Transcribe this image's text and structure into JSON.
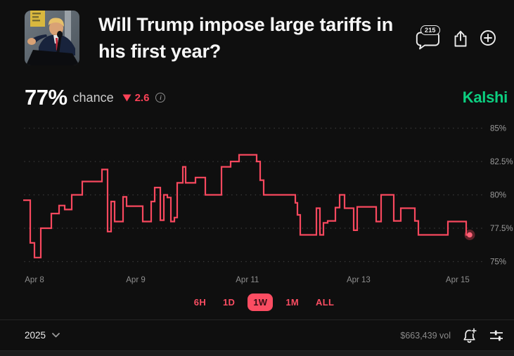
{
  "header": {
    "title": "Will Trump impose large tariffs in his first year?",
    "comments_count": "215"
  },
  "market": {
    "chance_value": "77%",
    "chance_label": "chance",
    "change_value": "2.6",
    "change_direction": "down",
    "brand": "Kalshi"
  },
  "chart_data": {
    "type": "line",
    "style": "step-after",
    "unit": "%",
    "title": "",
    "ylim": [
      74.2,
      85.7
    ],
    "yticks": [
      {
        "label": "85%",
        "value": 85
      },
      {
        "label": "82.5%",
        "value": 82.5
      },
      {
        "label": "80%",
        "value": 80
      },
      {
        "label": "77.5%",
        "value": 77.5
      },
      {
        "label": "75%",
        "value": 75
      }
    ],
    "xticks": [
      {
        "label": "Apr 8",
        "t": 0.0252
      },
      {
        "label": "Apr 9",
        "t": 0.252
      },
      {
        "label": "Apr 11",
        "t": 0.502
      },
      {
        "label": "Apr 13",
        "t": 0.751
      },
      {
        "label": "Apr 15",
        "t": 0.973
      }
    ],
    "grid": "dotted-horizontal",
    "line_color": "#f8485e",
    "series": [
      {
        "name": "chance",
        "points": [
          [
            0.0,
            79.6
          ],
          [
            0.0157,
            76.4
          ],
          [
            0.0252,
            75.3
          ],
          [
            0.0394,
            77.5
          ],
          [
            0.063,
            78.6
          ],
          [
            0.0803,
            79.2
          ],
          [
            0.0929,
            78.9
          ],
          [
            0.1087,
            80.0
          ],
          [
            0.1323,
            81.0
          ],
          [
            0.1764,
            81.9
          ],
          [
            0.189,
            77.25
          ],
          [
            0.1969,
            79.5
          ],
          [
            0.2047,
            78.0
          ],
          [
            0.2236,
            79.85
          ],
          [
            0.2315,
            79.15
          ],
          [
            0.2677,
            78.0
          ],
          [
            0.2866,
            79.5
          ],
          [
            0.2945,
            80.55
          ],
          [
            0.3071,
            78.1
          ],
          [
            0.315,
            80.0
          ],
          [
            0.3228,
            79.8
          ],
          [
            0.3307,
            78.0
          ],
          [
            0.3386,
            78.3
          ],
          [
            0.3449,
            80.9
          ],
          [
            0.3575,
            82.1
          ],
          [
            0.3638,
            80.9
          ],
          [
            0.3858,
            81.3
          ],
          [
            0.4079,
            80.0
          ],
          [
            0.4441,
            82.1
          ],
          [
            0.4646,
            82.5
          ],
          [
            0.4835,
            83.0
          ],
          [
            0.5228,
            82.5
          ],
          [
            0.5307,
            81.1
          ],
          [
            0.5386,
            80.0
          ],
          [
            0.6094,
            79.4
          ],
          [
            0.6142,
            78.5
          ],
          [
            0.6205,
            77.0
          ],
          [
            0.6567,
            79.0
          ],
          [
            0.6646,
            77.0
          ],
          [
            0.6724,
            77.9
          ],
          [
            0.6819,
            78.05
          ],
          [
            0.6992,
            79.05
          ],
          [
            0.7087,
            80.0
          ],
          [
            0.7197,
            79.0
          ],
          [
            0.7402,
            77.35
          ],
          [
            0.748,
            79.1
          ],
          [
            0.7906,
            78.0
          ],
          [
            0.8016,
            80.0
          ],
          [
            0.8299,
            78.05
          ],
          [
            0.8457,
            79.0
          ],
          [
            0.8772,
            78.05
          ],
          [
            0.885,
            77.0
          ],
          [
            0.9512,
            78.0
          ],
          [
            0.9921,
            77.0
          ]
        ]
      }
    ]
  },
  "range_buttons": {
    "options": [
      "6H",
      "1D",
      "1W",
      "1M",
      "ALL"
    ],
    "selected": "1W"
  },
  "footer": {
    "year": "2025",
    "volume": "$663,439 vol"
  },
  "icons": {
    "comment": "speech-bubble",
    "share": "share-arrow-up",
    "add": "plus-circle",
    "info": "info-circle",
    "change": "triangle-down",
    "year_dropdown": "chevron-down",
    "watchlist": "bell-plus",
    "settings": "sliders"
  }
}
